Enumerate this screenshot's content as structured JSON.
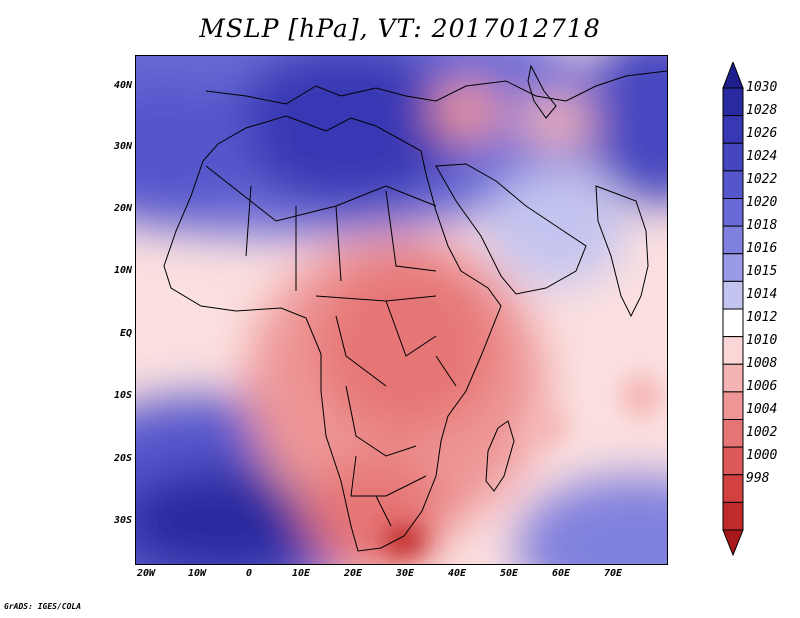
{
  "title": "MSLP [hPa], VT: 2017012718",
  "footer": "GrADS: IGES/COLA",
  "map": {
    "variable": "MSLP",
    "units": "hPa",
    "valid_time": "2017012718",
    "region": "Africa and Middle East"
  },
  "axes": {
    "lat_labels": [
      "40N",
      "30N",
      "20N",
      "10N",
      "EQ",
      "10S",
      "20S",
      "30S"
    ],
    "lon_labels": [
      "20W",
      "10W",
      "0",
      "10E",
      "20E",
      "30E",
      "40E",
      "50E",
      "60E",
      "70E"
    ]
  },
  "colorbar": {
    "levels": [
      "1030",
      "1028",
      "1026",
      "1024",
      "1022",
      "1020",
      "1018",
      "1016",
      "1015",
      "1014",
      "1012",
      "1010",
      "1008",
      "1006",
      "1004",
      "1002",
      "1000",
      "998"
    ],
    "colors": [
      "#1e1e8c",
      "#2a2aa0",
      "#3838b4",
      "#4646c0",
      "#5656cc",
      "#6a6ad6",
      "#8080de",
      "#9a9ae6",
      "#c4c4f0",
      "#ffffff",
      "#fbd6d6",
      "#f5b4b4",
      "#ee9696",
      "#e67676",
      "#de5a5a",
      "#d24040",
      "#c02a2a",
      "#a81818"
    ]
  }
}
